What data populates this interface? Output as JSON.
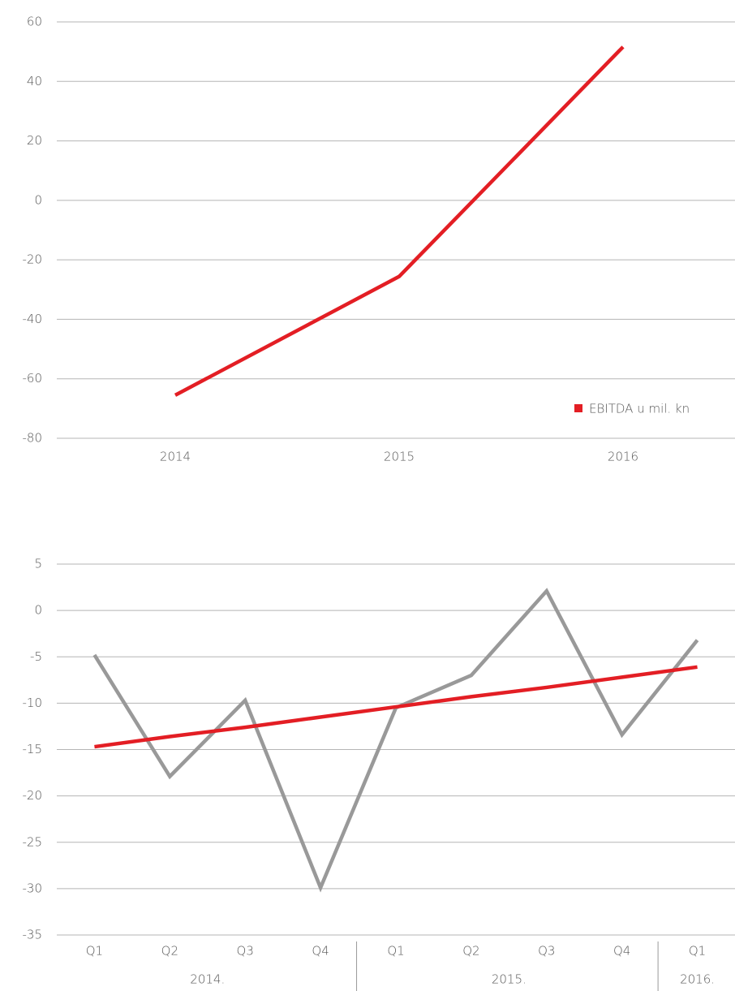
{
  "chart_data": [
    {
      "type": "line",
      "categories": [
        "2014",
        "2015",
        "2016"
      ],
      "series": [
        {
          "name": "EBITDA u mil. kn",
          "color": "#e31e24",
          "values": [
            -65.5,
            -25.6,
            51.6
          ]
        }
      ],
      "ylim": [
        -80,
        60
      ],
      "yticks": [
        -80,
        -60,
        -40,
        -20,
        0,
        20,
        40,
        60
      ],
      "grid": true,
      "legend": "lower right"
    },
    {
      "type": "line",
      "categories": [
        "Q1",
        "Q2",
        "Q3",
        "Q4",
        "Q1",
        "Q2",
        "Q3",
        "Q4",
        "Q1"
      ],
      "groups": [
        {
          "label": "2014.",
          "span": 4
        },
        {
          "label": "2015.",
          "span": 4
        },
        {
          "label": "2016.",
          "span": 1
        }
      ],
      "series": [
        {
          "color": "#999999",
          "values": [
            -4.8,
            -17.9,
            -9.7,
            -29.9,
            -10.5,
            -7.0,
            2.1,
            -13.4,
            -3.2
          ]
        },
        {
          "color": "#e31e24",
          "values": [
            -14.7,
            -13.6,
            -12.6,
            -11.5,
            -10.4,
            -9.3,
            -8.3,
            -7.2,
            -6.1
          ]
        }
      ],
      "ylim": [
        -35,
        5
      ],
      "yticks": [
        -35,
        -30,
        -25,
        -20,
        -15,
        -10,
        -5,
        0,
        5
      ],
      "grid": true
    }
  ]
}
